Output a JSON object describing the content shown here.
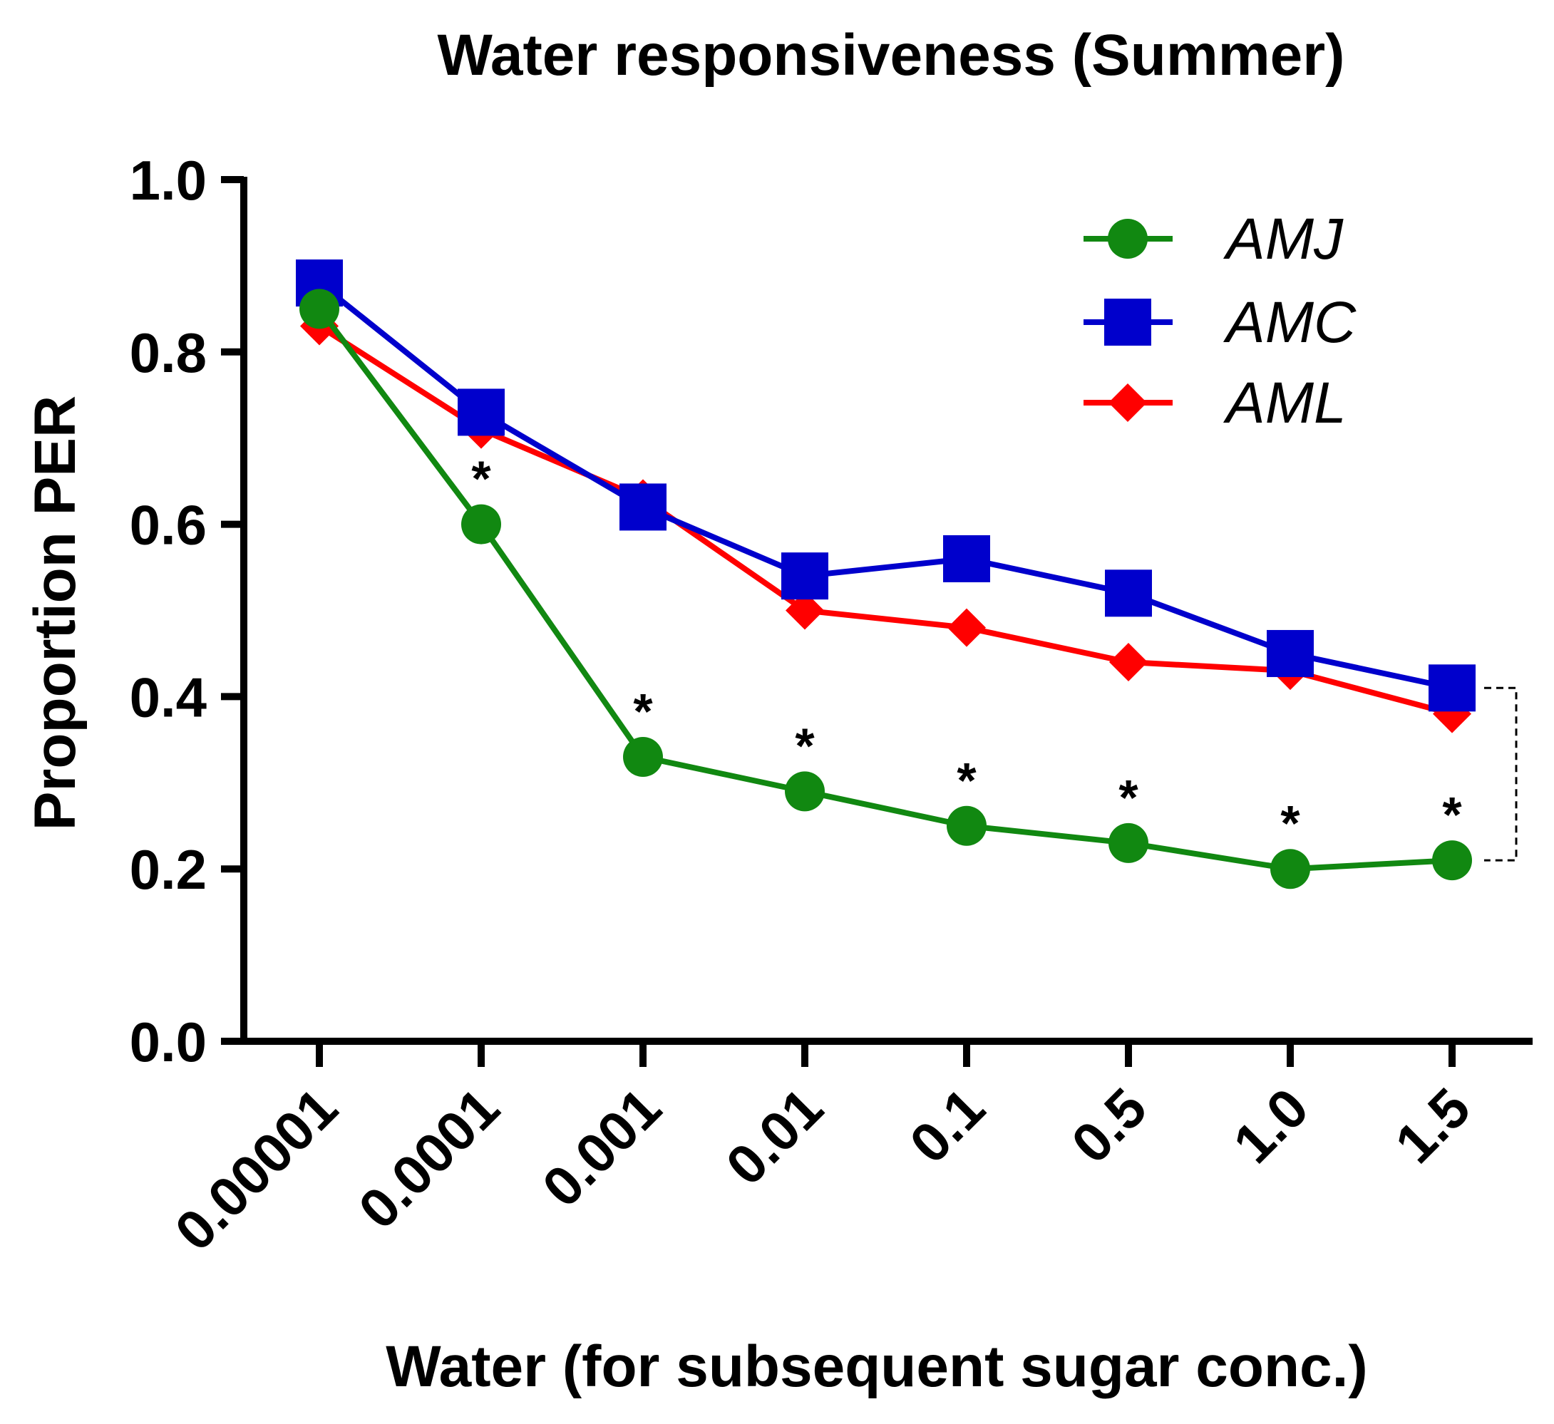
{
  "chart_data": {
    "type": "line",
    "title": "Water responsiveness (Summer)",
    "xlabel": "Water (for subsequent sugar conc.)",
    "ylabel": "Proportion PER",
    "categories": [
      "0.00001",
      "0.0001",
      "0.001",
      "0.01",
      "0.1",
      "0.5",
      "1.0",
      "1.5"
    ],
    "ylim": [
      0,
      1
    ],
    "yticks": [
      "0.0",
      "0.2",
      "0.4",
      "0.6",
      "0.8",
      "1.0"
    ],
    "series": [
      {
        "name": "AML",
        "marker": "diamond",
        "color": "#ff0000",
        "values": [
          0.83,
          0.71,
          0.63,
          0.5,
          0.48,
          0.44,
          0.43,
          0.38
        ]
      },
      {
        "name": "AMC",
        "marker": "square",
        "color": "#0000cc",
        "values": [
          0.88,
          0.73,
          0.62,
          0.54,
          0.56,
          0.52,
          0.45,
          0.41
        ]
      },
      {
        "name": "AMJ",
        "marker": "circle",
        "color": "#118811",
        "values": [
          0.85,
          0.6,
          0.33,
          0.29,
          0.25,
          0.23,
          0.2,
          0.21
        ]
      }
    ],
    "significance_marker": "*",
    "significant_categories": [
      "0.0001",
      "0.001",
      "0.01",
      "0.1",
      "0.5",
      "1.0",
      "1.5"
    ],
    "legend": [
      "AMJ",
      "AMC",
      "AML"
    ],
    "legend_position": "top-right",
    "bracket": "dashed bracket linking AMC and AMJ at 1.5"
  }
}
